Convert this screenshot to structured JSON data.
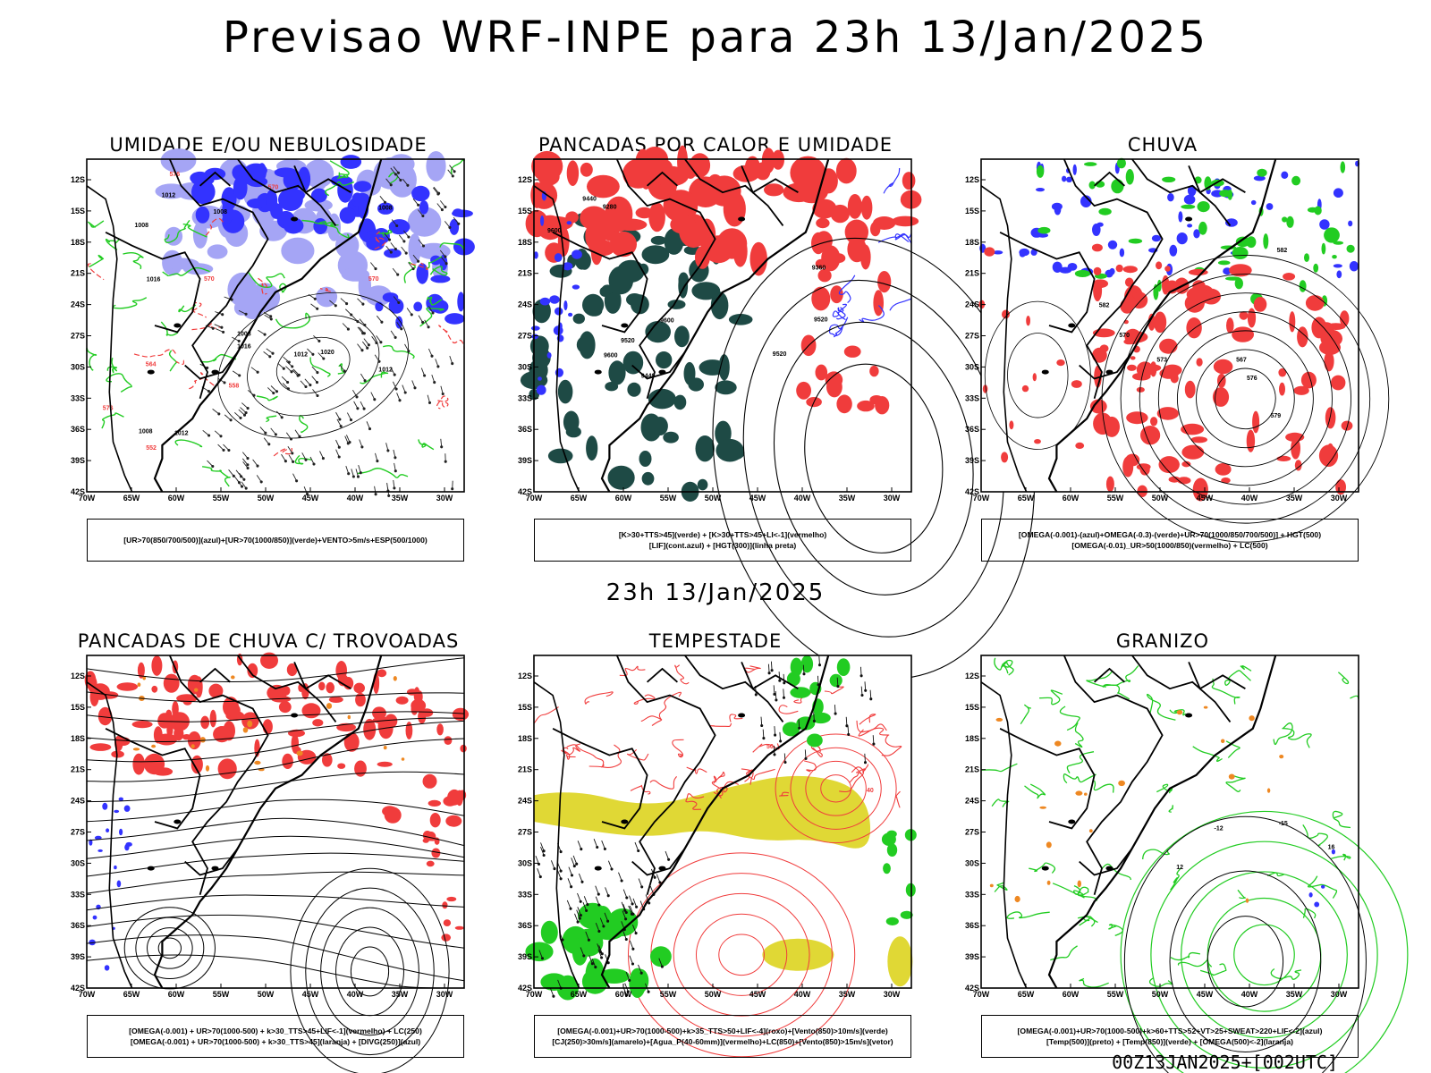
{
  "title": "Previsao WRF-INPE  para 23h 13/Jan/2025",
  "mid_title": "23h 13/Jan/2025",
  "stamp": "00Z13JAN2025+[002UTC]",
  "lat_ticks": [
    "12S",
    "15S",
    "18S",
    "21S",
    "24S",
    "27S",
    "30S",
    "33S",
    "36S",
    "39S",
    "42S"
  ],
  "lon_ticks": [
    "70W",
    "65W",
    "60W",
    "55W",
    "50W",
    "45W",
    "40W",
    "35W",
    "30W"
  ],
  "colors": {
    "blue": "#3333ff",
    "light_blue": "#a5a5f5",
    "green": "#22cc22",
    "red": "#f03c3c",
    "dark_teal": "#1e4a45",
    "yellow": "#e0d835",
    "orange": "#ee8822"
  },
  "panels": [
    {
      "title": "UMIDADE E/OU NEBULOSIDADE",
      "legend": [
        "[UR>70(850/700/500)](azul)+[UR>70(1000/850)](verde)+VENTO>5m/s+ESP(500/1000)"
      ],
      "contour_labels": [
        "1012",
        "1016",
        "1008",
        "1008",
        "1012",
        "1008",
        "1012",
        "1008",
        "1016",
        "1020",
        "1012",
        "1008",
        "576",
        "570",
        "576",
        "570",
        "564",
        "558",
        "552",
        "570"
      ]
    },
    {
      "title": "PANCADAS POR CALOR E UMIDADE",
      "legend": [
        "[K>30+TTS>45](verde) + [K>30+TTS>45+LI<-1](vermelho)",
        "[LIF](cont.azul) + [HGT(300)](linha preta)"
      ],
      "contour_labels": [
        "9600",
        "9520",
        "9440",
        "9360",
        "9280",
        "9600",
        "9520",
        "9440",
        "9520",
        "9600"
      ]
    },
    {
      "title": "CHUVA",
      "legend": [
        "[OMEGA(-0.001)-(azul)+OMEGA(-0.3)-(verde)+UR>70(1000/850/700/500)] + HGT(500)",
        "[OMEGA(-0.01)_UR>50(1000/850)(vermelho) + LC(500)"
      ],
      "contour_labels": [
        "582",
        "579",
        "576",
        "573",
        "570",
        "567",
        "582"
      ]
    },
    {
      "title": "PANCADAS DE CHUVA C/ TROVOADAS",
      "legend": [
        "[OMEGA(-0.001) + UR>70(1000-500) + k>30_TTS>45+LIF<-1](vermelho) + LC(250)",
        "[OMEGA(-0.001) + UR>70(1000-500) + k>30_TTS>45](laranja) + [DIVG(250)](azul)"
      ],
      "contour_labels": []
    },
    {
      "title": "TEMPESTADE",
      "legend": [
        "[OMEGA(-0.001)+UR>70(1000-500)+k>35_TTS>50+LIF<-4](roxo)+[Vento(850)>10m/s](verde)",
        "[CJ(250)>30m/s](amarelo)+[Agua_P(40-60mm)](vermelho)+LC(850)+[Vento(850)>15m/s](vetor)"
      ],
      "contour_labels": [
        "50",
        "40"
      ]
    },
    {
      "title": "GRANIZO",
      "legend": [
        "[OMEGA(-0.001)+UR>70(1000-500)+k>60+TTS>52+VT>25+SWEAT>220+LIF<-2](azul)",
        "[Temp(500)](preto) + [Temp(850)](verde) + [OMEGA(500)<-2](laranja)"
      ],
      "contour_labels": [
        "-12",
        "-15",
        "12",
        "16"
      ]
    }
  ]
}
